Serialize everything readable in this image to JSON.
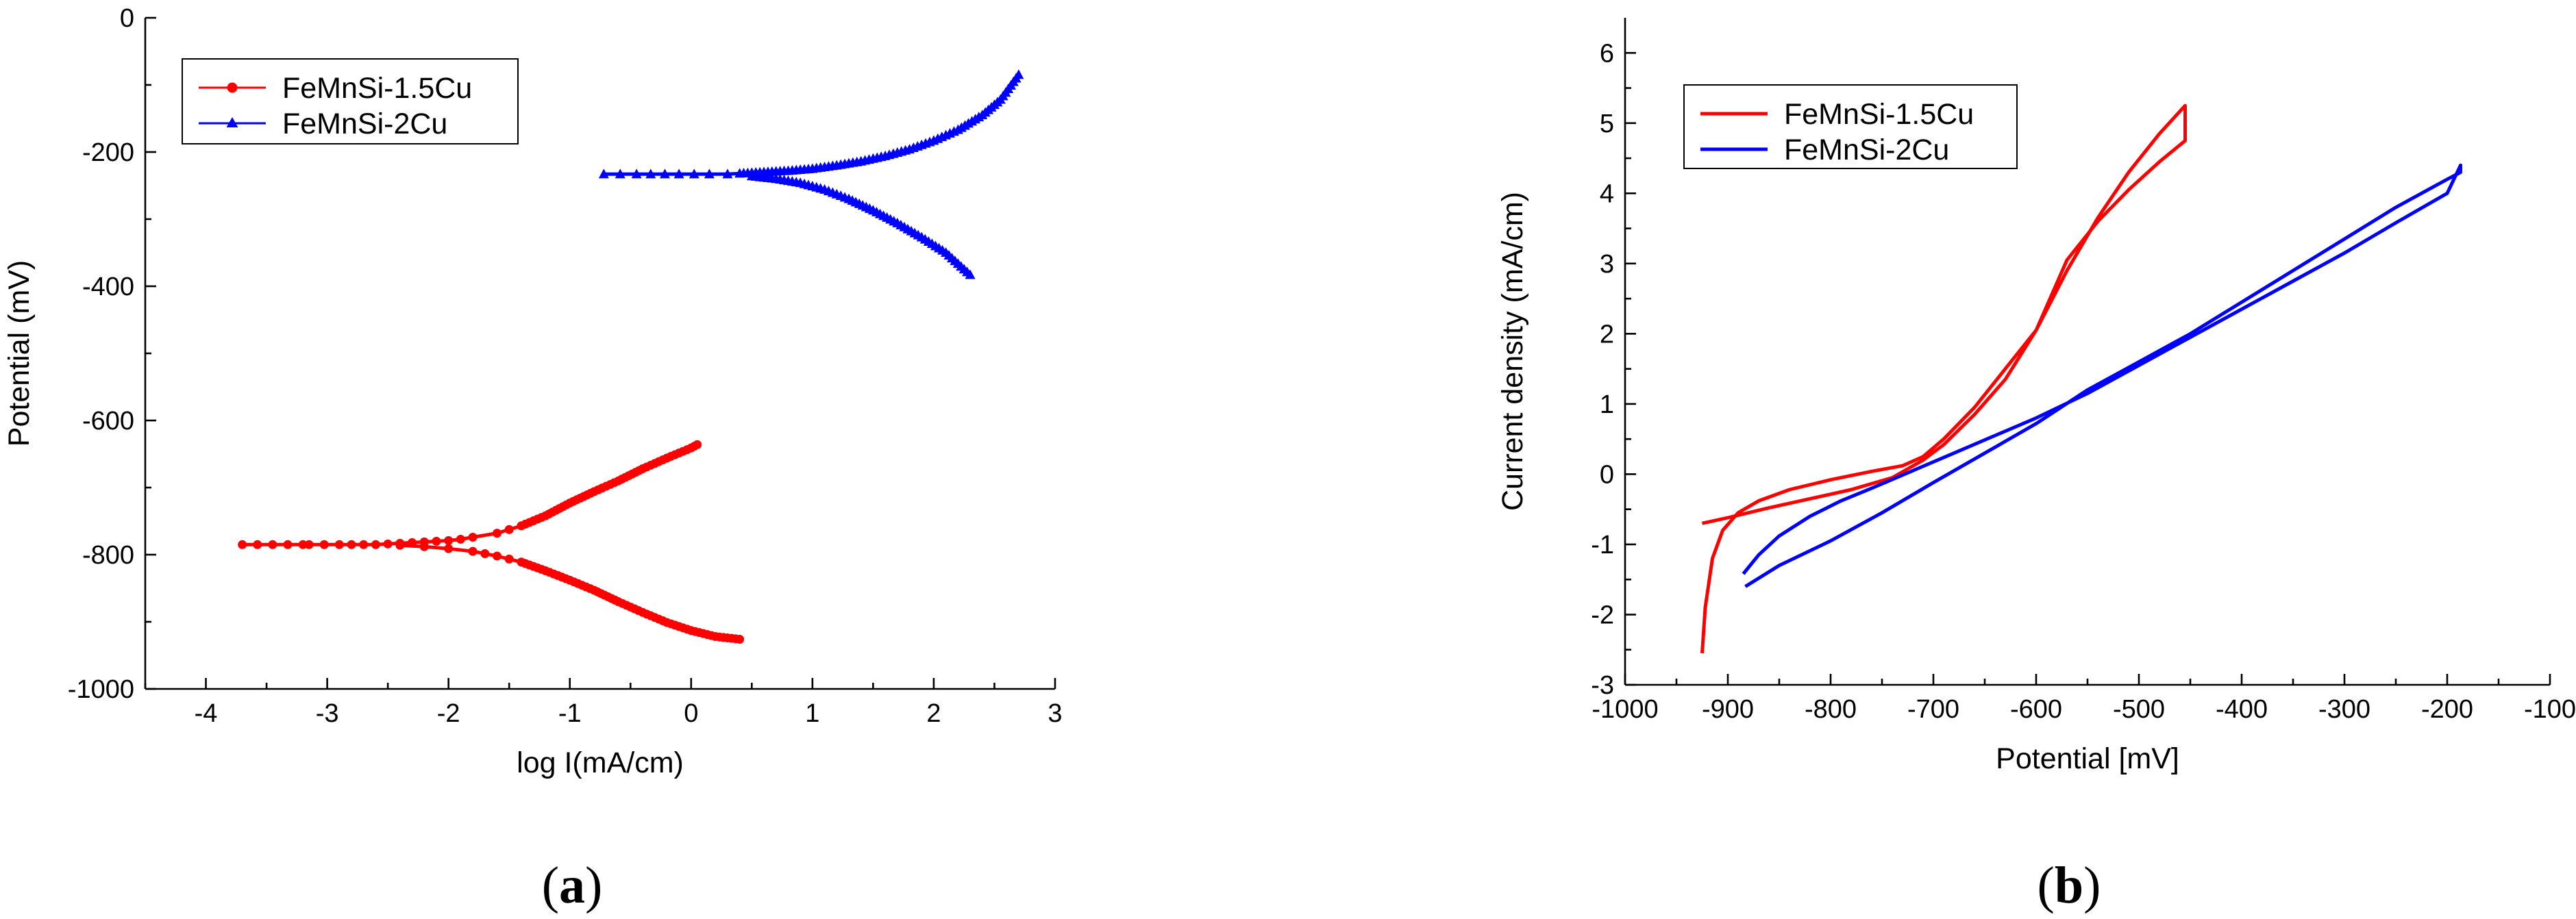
{
  "chart_data": [
    {
      "type": "scatter",
      "panel_label": "a",
      "xlabel": "log I(mA/cm)",
      "ylabel": "Potential (mV)",
      "xlim": [
        -4.5,
        3
      ],
      "ylim": [
        -1000,
        0
      ],
      "xticks": [
        "-4",
        "-3",
        "-2",
        "-1",
        "0",
        "1",
        "2",
        "3"
      ],
      "yticks": [
        "0",
        "-200",
        "-400",
        "-600",
        "-800",
        "-1000"
      ],
      "legend_position": "top-left",
      "series": [
        {
          "name": "FeMnSi-1.5Cu",
          "color": "#ff0000",
          "marker": "circle",
          "x": [
            -3.7,
            -3.2,
            -3.15,
            -2.9,
            -2.8,
            -2.7,
            -2.6,
            -2.5,
            -2.4,
            -2.3,
            -2.2,
            -2.1,
            -2.0,
            -1.9,
            -1.8,
            -1.6,
            -1.4,
            -1.2,
            -1.0,
            -0.8,
            -0.6,
            -0.4,
            -0.2,
            0.0,
            0.05
          ],
          "y": [
            -785,
            -785,
            -785,
            -785,
            -785,
            -785,
            -785,
            -784,
            -783,
            -782,
            -781,
            -780,
            -779,
            -777,
            -774,
            -768,
            -757,
            -742,
            -723,
            -706,
            -690,
            -672,
            -656,
            -641,
            -636
          ],
          "x2": [
            -2.4,
            -2.2,
            -2.0,
            -1.8,
            -1.6,
            -1.4,
            -1.2,
            -1.0,
            -0.8,
            -0.6,
            -0.4,
            -0.2,
            0.0,
            0.2,
            0.4
          ],
          "y2": [
            -786,
            -788,
            -791,
            -795,
            -802,
            -811,
            -824,
            -838,
            -853,
            -870,
            -886,
            -901,
            -913,
            -922,
            -926
          ]
        },
        {
          "name": "FeMnSi-2Cu",
          "color": "#0000ff",
          "marker": "triangle",
          "x": [
            -0.72,
            -0.45,
            -0.1,
            0.15,
            0.3,
            0.4,
            0.5,
            0.6,
            0.8,
            1.0,
            1.2,
            1.4,
            1.6,
            1.8,
            2.0,
            2.2,
            2.4,
            2.55,
            2.7
          ],
          "y": [
            -233,
            -233,
            -233,
            -233,
            -233,
            -232,
            -231,
            -230,
            -228,
            -225,
            -220,
            -214,
            -206,
            -196,
            -183,
            -167,
            -145,
            -122,
            -85
          ],
          "x2": [
            0.5,
            0.7,
            0.9,
            1.1,
            1.3,
            1.5,
            1.7,
            1.9,
            2.1,
            2.3
          ],
          "y2": [
            -236,
            -240,
            -246,
            -256,
            -270,
            -287,
            -306,
            -327,
            -350,
            -383
          ]
        }
      ]
    },
    {
      "type": "line",
      "panel_label": "b",
      "xlabel": "Potential [mV]",
      "ylabel": "Current density (mA/cm)",
      "xlim": [
        -1000,
        -100
      ],
      "ylim": [
        -3,
        6.5
      ],
      "xticks": [
        "-1000",
        "-900",
        "-800",
        "-700",
        "-600",
        "-500",
        "-400",
        "-300",
        "-200",
        "-100"
      ],
      "yticks": [
        "-3",
        "-2",
        "-1",
        "0",
        "1",
        "2",
        "3",
        "4",
        "5",
        "6"
      ],
      "legend_position": "top-left",
      "series": [
        {
          "name": "FeMnSi-1.5Cu",
          "color": "#ff0000",
          "x": [
            -925,
            -922,
            -915,
            -905,
            -890,
            -870,
            -840,
            -800,
            -760,
            -730,
            -710,
            -690,
            -660,
            -630,
            -600,
            -570,
            -540,
            -510,
            -480,
            -455,
            -455,
            -480,
            -510,
            -540,
            -570,
            -600,
            -630,
            -660,
            -690,
            -710,
            -740,
            -780,
            -820,
            -860,
            -900,
            -925
          ],
          "y": [
            -2.55,
            -1.9,
            -1.2,
            -0.8,
            -0.55,
            -0.38,
            -0.22,
            -0.08,
            0.04,
            0.12,
            0.25,
            0.5,
            0.95,
            1.5,
            2.05,
            2.9,
            3.65,
            4.3,
            4.85,
            5.25,
            4.75,
            4.45,
            4.05,
            3.6,
            3.05,
            2.05,
            1.35,
            0.85,
            0.42,
            0.2,
            -0.05,
            -0.22,
            -0.35,
            -0.48,
            -0.62,
            -0.7
          ]
        },
        {
          "name": "FeMnSi-2Cu",
          "color": "#0000ff",
          "x": [
            -885,
            -870,
            -850,
            -820,
            -790,
            -760,
            -720,
            -680,
            -640,
            -600,
            -550,
            -500,
            -450,
            -400,
            -350,
            -300,
            -250,
            -200,
            -187,
            -187,
            -200,
            -250,
            -300,
            -350,
            -400,
            -450,
            -500,
            -550,
            -600,
            -650,
            -700,
            -750,
            -800,
            -850,
            -883
          ],
          "y": [
            -1.42,
            -1.15,
            -0.88,
            -0.6,
            -0.38,
            -0.2,
            0.05,
            0.3,
            0.55,
            0.8,
            1.15,
            1.55,
            1.95,
            2.35,
            2.75,
            3.15,
            3.58,
            4.0,
            4.4,
            4.3,
            4.2,
            3.8,
            3.35,
            2.9,
            2.45,
            2.0,
            1.6,
            1.2,
            0.72,
            0.3,
            -0.12,
            -0.55,
            -0.95,
            -1.3,
            -1.6
          ]
        }
      ]
    }
  ]
}
